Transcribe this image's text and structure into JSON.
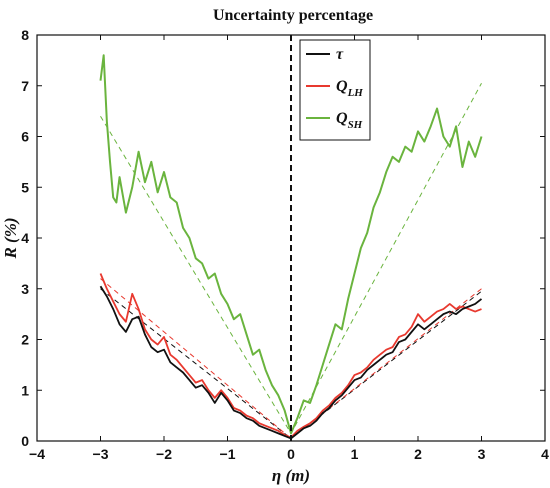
{
  "chart_data": {
    "type": "line",
    "title": "Uncertainty percentage",
    "xlabel": "η (m)",
    "ylabel": "R (%)",
    "xlim": [
      -4,
      4
    ],
    "ylim": [
      0,
      8
    ],
    "xticks": [
      "−4",
      "−3",
      "−2",
      "−1",
      "0",
      "1",
      "2",
      "3",
      "4"
    ],
    "yticks": [
      "0",
      "1",
      "2",
      "3",
      "4",
      "5",
      "6",
      "7",
      "8"
    ],
    "vline_x": 0,
    "legend_position": "top-right",
    "series": [
      {
        "name": "τ",
        "color": "#111111",
        "x": [
          -3.0,
          -2.9,
          -2.8,
          -2.7,
          -2.6,
          -2.5,
          -2.4,
          -2.3,
          -2.2,
          -2.1,
          -2.0,
          -1.9,
          -1.8,
          -1.7,
          -1.6,
          -1.5,
          -1.4,
          -1.3,
          -1.2,
          -1.1,
          -1.0,
          -0.9,
          -0.8,
          -0.7,
          -0.6,
          -0.5,
          -0.4,
          -0.3,
          -0.2,
          -0.1,
          0.0,
          0.1,
          0.2,
          0.3,
          0.4,
          0.5,
          0.6,
          0.7,
          0.8,
          0.9,
          1.0,
          1.1,
          1.2,
          1.3,
          1.4,
          1.5,
          1.6,
          1.7,
          1.8,
          1.9,
          2.0,
          2.1,
          2.2,
          2.3,
          2.4,
          2.5,
          2.6,
          2.7,
          2.8,
          2.9,
          3.0
        ],
        "values": [
          3.05,
          2.85,
          2.6,
          2.3,
          2.15,
          2.4,
          2.45,
          2.1,
          1.85,
          1.75,
          1.8,
          1.55,
          1.45,
          1.35,
          1.2,
          1.05,
          1.1,
          0.95,
          0.75,
          0.95,
          0.8,
          0.6,
          0.55,
          0.45,
          0.4,
          0.3,
          0.25,
          0.2,
          0.15,
          0.1,
          0.05,
          0.15,
          0.25,
          0.3,
          0.4,
          0.55,
          0.65,
          0.8,
          0.9,
          1.05,
          1.2,
          1.25,
          1.4,
          1.5,
          1.6,
          1.7,
          1.75,
          1.95,
          2.0,
          2.15,
          2.3,
          2.2,
          2.3,
          2.4,
          2.5,
          2.55,
          2.5,
          2.6,
          2.65,
          2.7,
          2.8
        ],
        "fit_x": [
          -3,
          0,
          3
        ],
        "fit_y": [
          3.0,
          0.05,
          2.95
        ]
      },
      {
        "name": "Q_LH",
        "color": "#e8392f",
        "x": [
          -3.0,
          -2.9,
          -2.8,
          -2.7,
          -2.6,
          -2.5,
          -2.4,
          -2.3,
          -2.2,
          -2.1,
          -2.0,
          -1.9,
          -1.8,
          -1.7,
          -1.6,
          -1.5,
          -1.4,
          -1.3,
          -1.2,
          -1.1,
          -1.0,
          -0.9,
          -0.8,
          -0.7,
          -0.6,
          -0.5,
          -0.4,
          -0.3,
          -0.2,
          -0.1,
          0.0,
          0.1,
          0.2,
          0.3,
          0.4,
          0.5,
          0.6,
          0.7,
          0.8,
          0.9,
          1.0,
          1.1,
          1.2,
          1.3,
          1.4,
          1.5,
          1.6,
          1.7,
          1.8,
          1.9,
          2.0,
          2.1,
          2.2,
          2.3,
          2.4,
          2.5,
          2.6,
          2.7,
          2.8,
          2.9,
          3.0
        ],
        "values": [
          3.3,
          3.0,
          2.75,
          2.5,
          2.35,
          2.9,
          2.6,
          2.2,
          2.0,
          1.9,
          2.05,
          1.7,
          1.6,
          1.45,
          1.3,
          1.15,
          1.2,
          1.0,
          0.85,
          1.0,
          0.85,
          0.65,
          0.6,
          0.5,
          0.45,
          0.35,
          0.3,
          0.25,
          0.2,
          0.12,
          0.07,
          0.2,
          0.28,
          0.35,
          0.45,
          0.6,
          0.7,
          0.85,
          0.95,
          1.1,
          1.3,
          1.35,
          1.45,
          1.6,
          1.7,
          1.8,
          1.85,
          2.05,
          2.1,
          2.25,
          2.5,
          2.35,
          2.45,
          2.55,
          2.6,
          2.7,
          2.6,
          2.65,
          2.6,
          2.55,
          2.6
        ],
        "fit_x": [
          -3,
          0,
          3
        ],
        "fit_y": [
          3.2,
          0.05,
          3.0
        ]
      },
      {
        "name": "Q_SH",
        "color": "#6ab43e",
        "x": [
          -3.0,
          -2.95,
          -2.9,
          -2.85,
          -2.8,
          -2.75,
          -2.7,
          -2.6,
          -2.5,
          -2.4,
          -2.3,
          -2.2,
          -2.1,
          -2.0,
          -1.9,
          -1.8,
          -1.7,
          -1.6,
          -1.5,
          -1.4,
          -1.3,
          -1.2,
          -1.1,
          -1.0,
          -0.9,
          -0.8,
          -0.7,
          -0.6,
          -0.5,
          -0.4,
          -0.3,
          -0.2,
          -0.1,
          0.0,
          0.1,
          0.2,
          0.3,
          0.4,
          0.5,
          0.6,
          0.7,
          0.8,
          0.9,
          1.0,
          1.1,
          1.2,
          1.3,
          1.4,
          1.5,
          1.6,
          1.7,
          1.8,
          1.9,
          2.0,
          2.1,
          2.2,
          2.3,
          2.4,
          2.5,
          2.6,
          2.7,
          2.8,
          2.9,
          3.0
        ],
        "values": [
          7.1,
          7.6,
          6.3,
          5.5,
          4.8,
          4.7,
          5.2,
          4.5,
          5.0,
          5.7,
          5.1,
          5.5,
          4.9,
          5.3,
          4.8,
          4.7,
          4.2,
          4.0,
          3.6,
          3.5,
          3.2,
          3.3,
          2.9,
          2.7,
          2.4,
          2.5,
          2.1,
          1.7,
          1.8,
          1.4,
          1.1,
          0.9,
          0.6,
          0.15,
          0.45,
          0.8,
          0.75,
          1.1,
          1.5,
          1.9,
          2.3,
          2.2,
          2.8,
          3.3,
          3.8,
          4.1,
          4.6,
          4.9,
          5.3,
          5.6,
          5.5,
          5.8,
          5.7,
          6.1,
          5.9,
          6.2,
          6.55,
          6.0,
          5.8,
          6.2,
          5.4,
          5.9,
          5.6,
          6.0
        ],
        "fit_x": [
          -3,
          0,
          3
        ],
        "fit_y": [
          6.4,
          0.15,
          7.05
        ]
      }
    ]
  }
}
